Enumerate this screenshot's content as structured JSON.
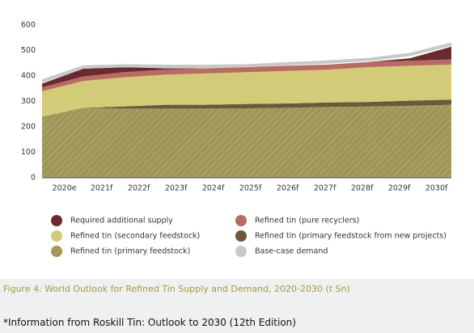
{
  "chart_data": {
    "type": "area",
    "categories": [
      "2020e",
      "2021f",
      "2022f",
      "2023f",
      "2024f",
      "2025f",
      "2026f",
      "2027f",
      "2028f",
      "2029f",
      "2030f"
    ],
    "series": [
      {
        "name": "Refined tin (primary feedstock)",
        "color": "#a09558",
        "hatch": true,
        "values": [
          240,
          275,
          272,
          272,
          272,
          273,
          275,
          278,
          280,
          283,
          287
        ]
      },
      {
        "name": "Refined tin (primary feedstock from new projects)",
        "color": "#6b5a3a",
        "values": [
          0,
          0,
          8,
          15,
          15,
          17,
          17,
          18,
          18,
          20,
          20
        ]
      },
      {
        "name": "Refined tin (secondary feedstock)",
        "color": "#d4cb78",
        "values": [
          100,
          105,
          115,
          118,
          123,
          125,
          128,
          129,
          137,
          137,
          138
        ]
      },
      {
        "name": "Refined tin (pure recyclers)",
        "color": "#b86b63",
        "values": [
          15,
          18,
          20,
          20,
          20,
          20,
          20,
          20,
          20,
          20,
          20
        ]
      },
      {
        "name": "Required additional supply",
        "color": "#6b2a30",
        "values": [
          15,
          30,
          20,
          5,
          0,
          0,
          0,
          0,
          0,
          10,
          50
        ]
      },
      {
        "name": "Base-case demand",
        "color": "#c8c8c8",
        "kind": "line",
        "values": [
          380,
          435,
          440,
          438,
          438,
          440,
          448,
          455,
          465,
          485,
          525
        ]
      }
    ],
    "ylim": [
      0,
      600
    ],
    "yticks": [
      0,
      100,
      200,
      300,
      400,
      500,
      600
    ],
    "grid": false,
    "caption": "Figure 4: World Outlook for Refined Tin Supply and Demand, 2020-2030 (t Sn)",
    "footnote": "*Information from Roskill Tin: Outlook to 2030 (12th Edition)"
  }
}
